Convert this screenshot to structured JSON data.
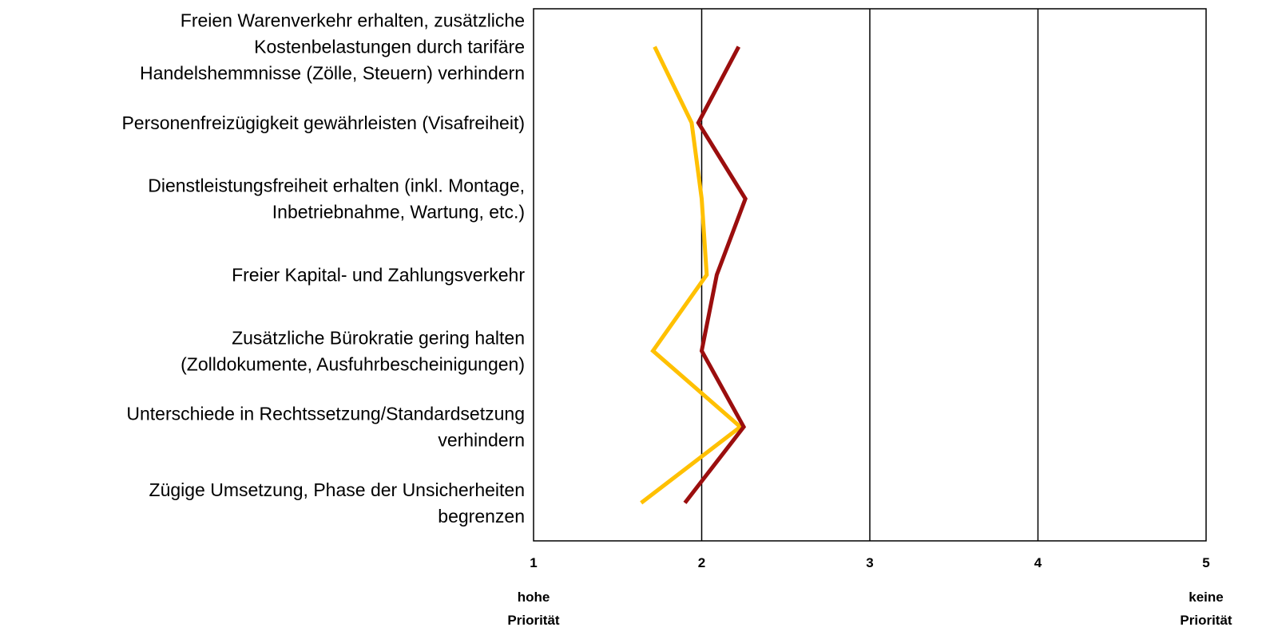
{
  "chart_data": {
    "type": "line",
    "orientation": "horizontal-value-axis",
    "categories": [
      "Freien Warenverkehr erhalten, zusätzliche Kostenbelastungen durch tarifäre Handelshemmnisse (Zölle, Steuern) verhindern",
      "Personenfreizügigkeit gewährleisten (Visafreiheit)",
      "Dienstleistungsfreiheit erhalten (inkl. Montage, Inbetriebnahme, Wartung, etc.)",
      "Freier Kapital- und Zahlungsverkehr",
      "Zusätzliche Bürokratie gering halten (Zolldokumente, Ausfuhrbescheinigungen)",
      "Unterschiede in Rechtssetzung/Standardsetzung verhindern",
      "Zügige Umsetzung, Phase der Unsicherheiten begrenzen"
    ],
    "category_lines": [
      [
        "Freien Warenverkehr erhalten, zusätzliche",
        "Kostenbelastungen durch tarifäre",
        "Handelshemmnisse (Zölle, Steuern) verhindern"
      ],
      [
        "Personenfreizügigkeit gewährleisten (Visafreiheit)"
      ],
      [
        "Dienstleistungsfreiheit erhalten (inkl. Montage,",
        "Inbetriebnahme, Wartung, etc.)"
      ],
      [
        "Freier Kapital- und Zahlungsverkehr"
      ],
      [
        "Zusätzliche Bürokratie gering halten",
        "(Zolldokumente, Ausfuhrbescheinigungen)"
      ],
      [
        "Unterschiede in Rechtssetzung/Standardsetzung",
        "verhindern"
      ],
      [
        "Zügige Umsetzung, Phase der Unsicherheiten",
        "begrenzen"
      ]
    ],
    "series": [
      {
        "color": "#FFC000",
        "values": [
          1.72,
          1.94,
          2.0,
          2.03,
          1.71,
          2.23,
          1.64
        ]
      },
      {
        "color": "#9B0E0E",
        "values": [
          2.22,
          1.98,
          2.26,
          2.09,
          2.0,
          2.25,
          1.9
        ]
      }
    ],
    "xlim": [
      1,
      5
    ],
    "xticks": [
      "1",
      "2",
      "3",
      "4",
      "5"
    ],
    "grid": "vertical",
    "axis_end_labels": {
      "low": [
        "hohe",
        "Priorität"
      ],
      "high": [
        "keine",
        "Priorität"
      ]
    },
    "title": "",
    "legend": "none"
  }
}
